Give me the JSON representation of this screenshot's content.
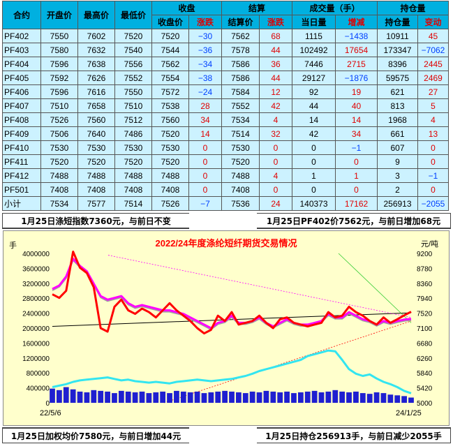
{
  "table": {
    "header_row1": {
      "contract": "合约",
      "open": "开盘价",
      "high": "最高价",
      "low": "最低价",
      "close_group": "收盘",
      "settle_group": "结算",
      "volume_group": "成交量（手）",
      "oi_group": "持仓量"
    },
    "header_row2": {
      "close_price": "收盘价",
      "close_change": "涨跌",
      "settle_price": "结算价",
      "settle_change": "涨跌",
      "volume_today": "当日量",
      "volume_change": "增减",
      "oi_amount": "持仓量",
      "oi_change": "变动"
    },
    "rows": [
      {
        "contract": "PF402",
        "open": "7550",
        "high": "7602",
        "low": "7520",
        "close": "7520",
        "close_chg": "−30",
        "settle": "7562",
        "settle_chg": "68",
        "vol": "1115",
        "vol_chg": "−1438",
        "oi": "10911",
        "oi_chg": "45"
      },
      {
        "contract": "PF403",
        "open": "7580",
        "high": "7632",
        "low": "7540",
        "close": "7544",
        "close_chg": "−36",
        "settle": "7578",
        "settle_chg": "44",
        "vol": "102492",
        "vol_chg": "17654",
        "oi": "173347",
        "oi_chg": "−7062"
      },
      {
        "contract": "PF404",
        "open": "7596",
        "high": "7638",
        "low": "7556",
        "close": "7562",
        "close_chg": "−34",
        "settle": "7586",
        "settle_chg": "36",
        "vol": "7446",
        "vol_chg": "2715",
        "oi": "8396",
        "oi_chg": "2445"
      },
      {
        "contract": "PF405",
        "open": "7592",
        "high": "7626",
        "low": "7552",
        "close": "7554",
        "close_chg": "−38",
        "settle": "7586",
        "settle_chg": "44",
        "vol": "29127",
        "vol_chg": "−1876",
        "oi": "59575",
        "oi_chg": "2469"
      },
      {
        "contract": "PF406",
        "open": "7596",
        "high": "7616",
        "low": "7550",
        "close": "7572",
        "close_chg": "−24",
        "settle": "7584",
        "settle_chg": "12",
        "vol": "92",
        "vol_chg": "19",
        "oi": "621",
        "oi_chg": "27"
      },
      {
        "contract": "PF407",
        "open": "7510",
        "high": "7658",
        "low": "7510",
        "close": "7538",
        "close_chg": "28",
        "settle": "7552",
        "settle_chg": "42",
        "vol": "44",
        "vol_chg": "40",
        "oi": "813",
        "oi_chg": "5"
      },
      {
        "contract": "PF408",
        "open": "7526",
        "high": "7560",
        "low": "7512",
        "close": "7560",
        "close_chg": "34",
        "settle": "7534",
        "settle_chg": "4",
        "vol": "14",
        "vol_chg": "14",
        "oi": "1968",
        "oi_chg": "4"
      },
      {
        "contract": "PF409",
        "open": "7506",
        "high": "7640",
        "low": "7486",
        "close": "7520",
        "close_chg": "14",
        "settle": "7514",
        "settle_chg": "32",
        "vol": "42",
        "vol_chg": "34",
        "oi": "661",
        "oi_chg": "13"
      },
      {
        "contract": "PF410",
        "open": "7530",
        "high": "7530",
        "low": "7530",
        "close": "7530",
        "close_chg": "0",
        "settle": "7530",
        "settle_chg": "0",
        "vol": "0",
        "vol_chg": "−1",
        "oi": "607",
        "oi_chg": "0"
      },
      {
        "contract": "PF411",
        "open": "7520",
        "high": "7520",
        "low": "7520",
        "close": "7520",
        "close_chg": "0",
        "settle": "7520",
        "settle_chg": "0",
        "vol": "0",
        "vol_chg": "0",
        "oi": "9",
        "oi_chg": "0"
      },
      {
        "contract": "PF412",
        "open": "7488",
        "high": "7488",
        "low": "7488",
        "close": "7488",
        "close_chg": "0",
        "settle": "7488",
        "settle_chg": "4",
        "vol": "1",
        "vol_chg": "1",
        "oi": "3",
        "oi_chg": "−1"
      },
      {
        "contract": "PF501",
        "open": "7408",
        "high": "7408",
        "low": "7408",
        "close": "7408",
        "close_chg": "0",
        "settle": "7408",
        "settle_chg": "0",
        "vol": "0",
        "vol_chg": "0",
        "oi": "2",
        "oi_chg": "0"
      },
      {
        "contract": "小计",
        "open": "7534",
        "high": "7577",
        "low": "7514",
        "close": "7526",
        "close_chg": "−7",
        "settle": "7536",
        "settle_chg": "24",
        "vol": "140373",
        "vol_chg": "17162",
        "oi": "256913",
        "oi_chg": "−2055"
      }
    ]
  },
  "captions": {
    "top_left": "1月25日涤短指数7360元，与前日不变",
    "top_right": "1月25日PF402价7562元，与前日增加68元",
    "bottom_left": "1月25日加权均价7580元，与前日增加44元",
    "bottom_right": "1月25日持仓256913手，与前日减少2055手"
  },
  "colors": {
    "header_bg": "#00b0e0",
    "cell_bg": "#ccf2ff",
    "positive": "#e00000",
    "negative": "#0040ff",
    "chart_bg": "#ffffcc",
    "price_line": "#ff0000",
    "index_line": "#ff00ff",
    "oi_line": "#33e5f0",
    "volume_bars": "#1f1fd0",
    "gray_line": "#a0a0a0",
    "trend_line": "#000000"
  },
  "chart_data": {
    "type": "line",
    "title": "2022/24年度涤纶短纤期货交易情况",
    "y_left_label": "手",
    "y_right_label": "元/吨",
    "x_start_label": "22/5/6",
    "x_end_label": "24/1/25",
    "y_left_ticks": [
      "4000000",
      "3600000",
      "3200000",
      "2800000",
      "2400000",
      "2000000",
      "1600000",
      "1200000",
      "800000",
      "400000",
      "0"
    ],
    "y_right_ticks": [
      "9200",
      "8780",
      "8360",
      "7940",
      "7520",
      "7100",
      "6680",
      "6260",
      "5840",
      "5420",
      "5000"
    ],
    "ylim_left": [
      0,
      4000000
    ],
    "ylim_right": [
      5000,
      9200
    ],
    "grid": false,
    "series": [
      {
        "role": "price",
        "values": [
          8050,
          7950,
          8150,
          9250,
          8800,
          8650,
          8250,
          7100,
          7000,
          7700,
          7900,
          7600,
          7500,
          7650,
          7550,
          7400,
          7600,
          7800,
          7600,
          7450,
          7300,
          7100,
          6950,
          7050,
          7450,
          7300,
          7550,
          7200,
          7250,
          7300,
          7450,
          7250,
          7100,
          7350,
          7400,
          7250,
          7200,
          7150,
          7200,
          7250,
          7550,
          7400,
          7450,
          7700,
          7550,
          7450,
          7300,
          7200,
          7400,
          7250,
          7350,
          7460,
          7560
        ]
      },
      {
        "role": "index",
        "values": [
          8200,
          8300,
          8550,
          9050,
          8850,
          8700,
          8350,
          8000,
          7900,
          7950,
          8000,
          7800,
          7700,
          7750,
          7700,
          7650,
          7600,
          7600,
          7550,
          7500,
          7400,
          7300,
          7200,
          7100,
          7250,
          7300,
          7450,
          7250,
          7250,
          7300,
          7400,
          7250,
          7150,
          7250,
          7350,
          7250,
          7200,
          7200,
          7250,
          7300,
          7500,
          7400,
          7400,
          7550,
          7450,
          7350,
          7300,
          7200,
          7300,
          7250,
          7300,
          7340,
          7360
        ]
      },
      {
        "role": "open_interest",
        "values": [
          420000,
          460000,
          500000,
          560000,
          600000,
          620000,
          640000,
          660000,
          680000,
          640000,
          600000,
          620000,
          580000,
          560000,
          540000,
          560000,
          540000,
          520000,
          560000,
          580000,
          600000,
          620000,
          600000,
          580000,
          600000,
          620000,
          640000,
          680000,
          720000,
          780000,
          850000,
          900000,
          950000,
          1000000,
          1050000,
          1100000,
          1150000,
          1250000,
          1300000,
          1350000,
          1400000,
          1380000,
          1150000,
          900000,
          780000,
          720000,
          760000,
          650000,
          560000,
          500000,
          420000,
          320000,
          256913
        ]
      },
      {
        "role": "volume",
        "values": [
          380000,
          340000,
          420000,
          360000,
          300000,
          280000,
          340000,
          320000,
          300000,
          260000,
          320000,
          300000,
          280000,
          300000,
          260000,
          280000,
          300000,
          260000,
          320000,
          300000,
          280000,
          300000,
          260000,
          280000,
          300000,
          320000,
          300000,
          280000,
          260000,
          300000,
          280000,
          320000,
          300000,
          280000,
          300000,
          260000,
          280000,
          300000,
          320000,
          280000,
          300000,
          340000,
          300000,
          280000,
          300000,
          260000,
          240000,
          280000,
          260000,
          220000,
          200000,
          180000,
          140373
        ]
      }
    ]
  }
}
